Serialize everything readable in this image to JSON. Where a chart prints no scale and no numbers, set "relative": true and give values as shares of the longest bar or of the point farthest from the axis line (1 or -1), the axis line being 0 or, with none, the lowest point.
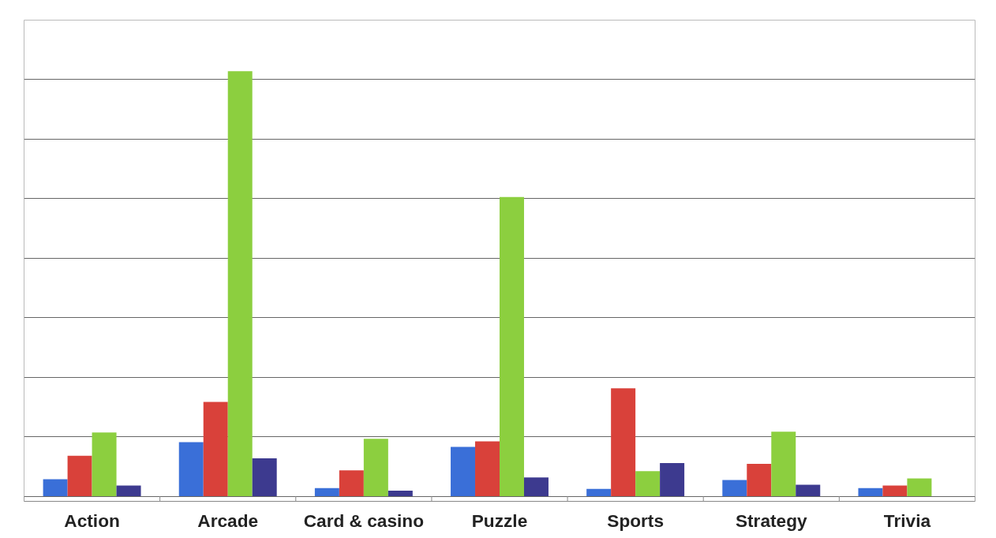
{
  "chart_data": {
    "type": "bar",
    "relative": true,
    "grid": "y",
    "categories": [
      "Action",
      "Arcade",
      "Card & casino",
      "Puzzle",
      "Sports",
      "Strategy",
      "Trivia"
    ],
    "series": [
      {
        "color": "#3a6fd8",
        "values": [
          0.04,
          0.127,
          0.019,
          0.116,
          0.017,
          0.038,
          0.019
        ]
      },
      {
        "color": "#d9413a",
        "values": [
          0.095,
          0.222,
          0.061,
          0.129,
          0.254,
          0.076,
          0.025
        ]
      },
      {
        "color": "#8ccf3f",
        "values": [
          0.15,
          1,
          0.135,
          0.704,
          0.059,
          0.152,
          0.042
        ]
      },
      {
        "color": "#3d3a8f",
        "values": [
          0.025,
          0.089,
          0.013,
          0.044,
          0.078,
          0.027,
          null
        ]
      }
    ]
  }
}
